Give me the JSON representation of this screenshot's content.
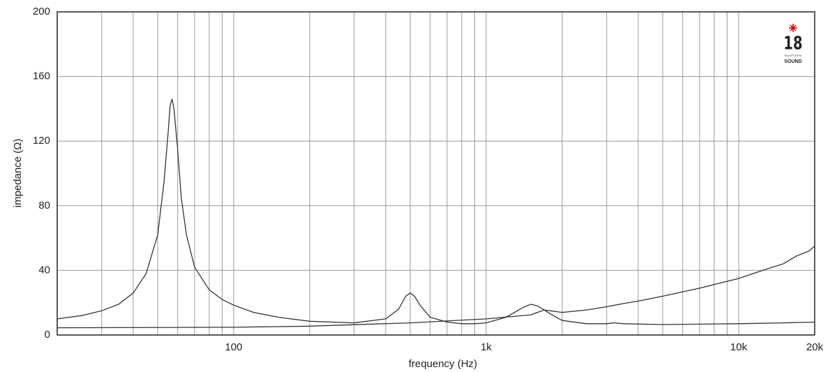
{
  "chart_data": {
    "type": "line",
    "xlabel": "frequency (Hz)",
    "ylabel": "impedance (Ω)",
    "xscale": "log",
    "grid": true,
    "xlim": [
      20,
      20000
    ],
    "ylim": [
      0,
      200
    ],
    "xticks": [
      {
        "value": 100,
        "label": "100"
      },
      {
        "value": 1000,
        "label": "1k"
      },
      {
        "value": 10000,
        "label": "10k"
      },
      {
        "value": 20000,
        "label": "20k"
      }
    ],
    "xminorticks": [
      30,
      40,
      50,
      60,
      70,
      80,
      90,
      200,
      300,
      400,
      500,
      600,
      700,
      800,
      900,
      2000,
      3000,
      4000,
      5000,
      6000,
      7000,
      8000,
      9000
    ],
    "yticks": [
      0,
      40,
      80,
      120,
      160,
      200
    ],
    "logo": {
      "main": "18",
      "sub": [
        "EIGHTEEN",
        "SOUND"
      ]
    },
    "series": [
      {
        "color": "#333333",
        "x": [
          20,
          25,
          30,
          35,
          40,
          45,
          50,
          53,
          55,
          56,
          57,
          58,
          60,
          62,
          65,
          70,
          80,
          90,
          100,
          120,
          150,
          200,
          300,
          400,
          450,
          480,
          500,
          520,
          550,
          600,
          700,
          800,
          900,
          1000,
          1200,
          1400,
          1500,
          1600,
          1800,
          2000,
          2500,
          3000,
          3200,
          3500,
          5000,
          10000,
          15000,
          20000
        ],
        "values": [
          10,
          12,
          15,
          19,
          26,
          38,
          62,
          95,
          125,
          142,
          146,
          140,
          115,
          85,
          62,
          42,
          28,
          22,
          18.5,
          14,
          11,
          8.5,
          7.5,
          10,
          16,
          24,
          26,
          24,
          18,
          11,
          8,
          7,
          7,
          7.5,
          11,
          17,
          19,
          18,
          13,
          9,
          7,
          7,
          7.5,
          7,
          6.5,
          7,
          7.5,
          8
        ]
      },
      {
        "color": "#333333",
        "x": [
          20,
          100,
          200,
          500,
          1000,
          1500,
          1700,
          1800,
          2000,
          2500,
          3000,
          3500,
          4000,
          5000,
          7000,
          10000,
          13000,
          15000,
          17000,
          19000,
          20000
        ],
        "values": [
          4.5,
          4.8,
          5.5,
          7.5,
          10,
          12.5,
          15.5,
          15,
          14,
          15.5,
          17.5,
          19.5,
          21,
          24,
          29,
          35,
          41,
          44,
          49,
          52,
          55
        ]
      }
    ]
  }
}
